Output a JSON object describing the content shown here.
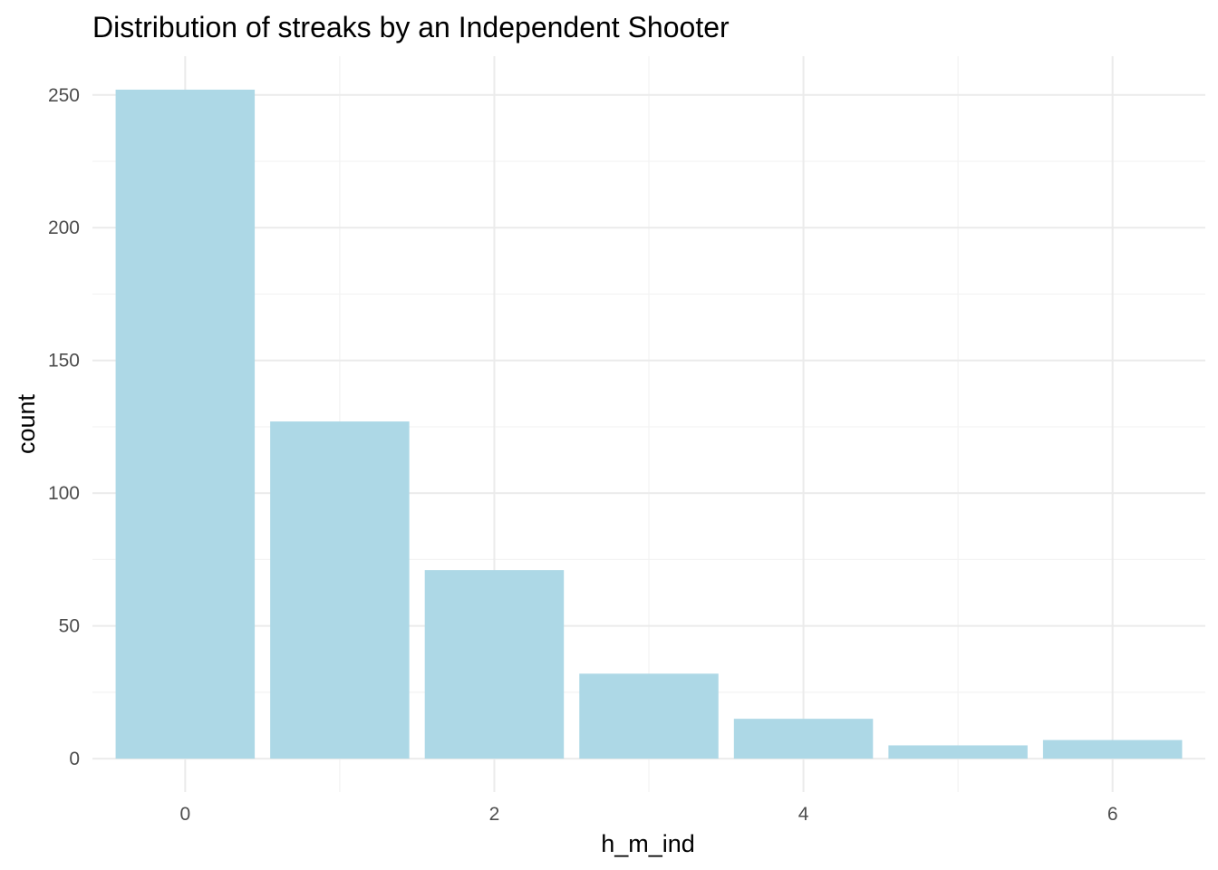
{
  "chart_data": {
    "type": "bar",
    "title": "Distribution of streaks by an Independent Shooter",
    "xlabel": "h_m_ind",
    "ylabel": "count",
    "x": [
      0,
      1,
      2,
      3,
      4,
      5,
      6
    ],
    "values": [
      252,
      127,
      71,
      32,
      15,
      5,
      7
    ],
    "xlim": [
      -0.6,
      6.6
    ],
    "ylim": [
      -12.6,
      264.6
    ],
    "x_ticks": [
      0,
      2,
      4,
      6
    ],
    "y_ticks": [
      0,
      50,
      100,
      150,
      200,
      250
    ],
    "bar_color": "#add8e6",
    "grid": true,
    "theme": "minimal"
  }
}
